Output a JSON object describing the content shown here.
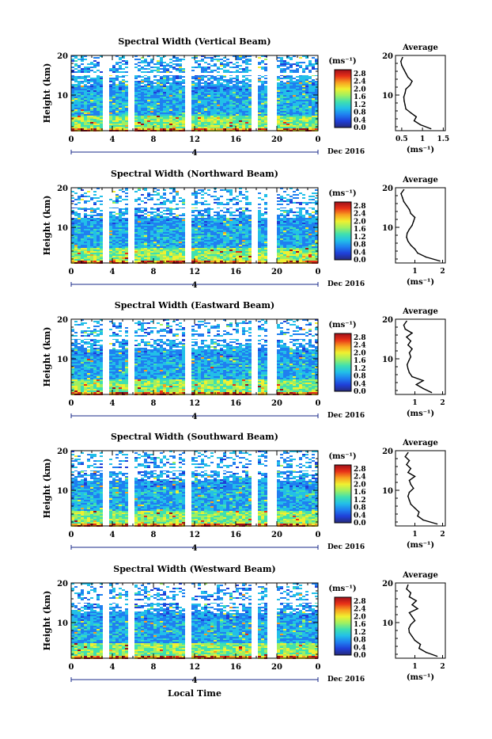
{
  "figure": {
    "y_axis_label": "Height (km)",
    "x_axis_label": "Local Time",
    "date_label": "Dec 2016",
    "unit_label": "(ms⁻¹)",
    "profile_unit_label": "(ms⁻¹)",
    "profile_title": "Average",
    "day_marker": "4"
  },
  "chart_data": [
    {
      "type": "heatmap",
      "title": "Spectral Width (Vertical Beam)",
      "xlabel": "",
      "ylabel": "Height (km)",
      "x_ticks": [
        "0",
        "4",
        "8",
        "12",
        "16",
        "20",
        "0"
      ],
      "y_ticks": [
        "20",
        "10"
      ],
      "xlim": [
        0,
        24
      ],
      "ylim": [
        1,
        20
      ],
      "colorbar": {
        "ticks": [
          "2.8",
          "2.4",
          "2.0",
          "1.6",
          "1.2",
          "0.8",
          "0.4",
          "0.0"
        ],
        "range": [
          0,
          3.0
        ]
      },
      "profile": {
        "type": "line",
        "title": "Average",
        "x_ticks": [
          "0.5",
          "1",
          "1.5"
        ],
        "xlim": [
          0.35,
          1.55
        ],
        "y_ticks": [
          "20",
          "10"
        ],
        "ylim": [
          1,
          20
        ],
        "heights": [
          1.5,
          2.5,
          3.5,
          4.5,
          5.5,
          6.5,
          7.5,
          8.5,
          9.5,
          10.5,
          11.5,
          12.5,
          13.5,
          14.5,
          15.5,
          16.5,
          17.5,
          18.5,
          19.5
        ],
        "values": [
          1.2,
          0.95,
          0.8,
          0.85,
          0.72,
          0.6,
          0.58,
          0.56,
          0.55,
          0.58,
          0.6,
          0.7,
          0.75,
          0.65,
          0.6,
          0.55,
          0.5,
          0.48,
          0.52
        ]
      }
    },
    {
      "type": "heatmap",
      "title": "Spectral Width (Northward Beam)",
      "xlabel": "",
      "ylabel": "Height (km)",
      "x_ticks": [
        "0",
        "4",
        "8",
        "12",
        "16",
        "20",
        "0"
      ],
      "y_ticks": [
        "20",
        "10"
      ],
      "xlim": [
        0,
        24
      ],
      "ylim": [
        1,
        20
      ],
      "colorbar": {
        "ticks": [
          "2.8",
          "2.4",
          "2.0",
          "1.6",
          "1.2",
          "0.8",
          "0.4",
          "0.0"
        ],
        "range": [
          0,
          3.0
        ]
      },
      "profile": {
        "type": "line",
        "title": "Average",
        "x_ticks": [
          "1",
          "2"
        ],
        "xlim": [
          0.3,
          2.1
        ],
        "y_ticks": [
          "20",
          "10"
        ],
        "ylim": [
          1,
          20
        ],
        "heights": [
          1.5,
          2.5,
          3.5,
          4.5,
          5.5,
          6.5,
          7.5,
          8.5,
          9.5,
          10.5,
          11.5,
          12.5,
          13.5,
          14.5,
          15.5,
          16.5,
          17.5,
          18.5,
          19.5
        ],
        "values": [
          1.9,
          1.4,
          1.1,
          1.0,
          0.85,
          0.75,
          0.7,
          0.72,
          0.8,
          0.9,
          0.95,
          1.0,
          0.85,
          0.8,
          0.7,
          0.6,
          0.55,
          0.5,
          0.6
        ]
      }
    },
    {
      "type": "heatmap",
      "title": "Spectral Width (Eastward Beam)",
      "xlabel": "",
      "ylabel": "Height (km)",
      "x_ticks": [
        "0",
        "4",
        "8",
        "12",
        "16",
        "20",
        "0"
      ],
      "y_ticks": [
        "20",
        "10"
      ],
      "xlim": [
        0,
        24
      ],
      "ylim": [
        1,
        20
      ],
      "colorbar": {
        "ticks": [
          "2.8",
          "2.4",
          "2.0",
          "1.6",
          "1.2",
          "0.8",
          "0.4",
          "0.0"
        ],
        "range": [
          0,
          3.0
        ]
      },
      "profile": {
        "type": "line",
        "title": "Average",
        "x_ticks": [
          "1",
          "2"
        ],
        "xlim": [
          0.3,
          2.1
        ],
        "y_ticks": [
          "20",
          "10"
        ],
        "ylim": [
          1,
          20
        ],
        "heights": [
          1.5,
          2.5,
          3.5,
          4.5,
          5.5,
          6.5,
          7.5,
          8.5,
          9.5,
          10.5,
          11.5,
          12.5,
          13.5,
          14.5,
          15.5,
          16.5,
          17.5,
          18.5,
          19.5
        ],
        "values": [
          1.6,
          1.3,
          1.05,
          1.3,
          0.9,
          0.8,
          0.75,
          0.72,
          0.78,
          0.85,
          0.8,
          0.9,
          0.75,
          0.85,
          0.7,
          0.9,
          0.65,
          0.6,
          0.7
        ]
      }
    },
    {
      "type": "heatmap",
      "title": "Spectral Width (Southward Beam)",
      "xlabel": "",
      "ylabel": "Height (km)",
      "x_ticks": [
        "0",
        "4",
        "8",
        "12",
        "16",
        "20",
        "0"
      ],
      "y_ticks": [
        "20",
        "10"
      ],
      "xlim": [
        0,
        24
      ],
      "ylim": [
        1,
        20
      ],
      "colorbar": {
        "ticks": [
          "2.8",
          "2.4",
          "2.0",
          "1.6",
          "1.2",
          "0.8",
          "0.4",
          "0.0"
        ],
        "range": [
          0,
          3.0
        ]
      },
      "profile": {
        "type": "line",
        "title": "Average",
        "x_ticks": [
          "1",
          "2"
        ],
        "xlim": [
          0.3,
          2.1
        ],
        "y_ticks": [
          "20",
          "10"
        ],
        "ylim": [
          1,
          20
        ],
        "heights": [
          1.5,
          2.5,
          3.5,
          4.5,
          5.5,
          6.5,
          7.5,
          8.5,
          9.5,
          10.5,
          11.5,
          12.5,
          13.5,
          14.5,
          15.5,
          16.5,
          17.5,
          18.5,
          19.5
        ],
        "values": [
          1.8,
          1.3,
          1.1,
          1.15,
          1.0,
          0.85,
          0.8,
          0.75,
          0.8,
          0.95,
          0.85,
          0.8,
          1.0,
          0.75,
          0.85,
          0.7,
          0.8,
          0.65,
          0.75
        ]
      }
    },
    {
      "type": "heatmap",
      "title": "Spectral Width (Westward Beam)",
      "xlabel": "Local Time",
      "ylabel": "Height (km)",
      "x_ticks": [
        "0",
        "4",
        "8",
        "12",
        "16",
        "20",
        "0"
      ],
      "y_ticks": [
        "20",
        "10"
      ],
      "xlim": [
        0,
        24
      ],
      "ylim": [
        1,
        20
      ],
      "colorbar": {
        "ticks": [
          "2.8",
          "2.4",
          "2.0",
          "1.6",
          "1.2",
          "0.8",
          "0.4",
          "0.0"
        ],
        "range": [
          0,
          3.0
        ]
      },
      "profile": {
        "type": "line",
        "title": "Average",
        "x_ticks": [
          "1",
          "2"
        ],
        "xlim": [
          0.3,
          2.1
        ],
        "y_ticks": [
          "20",
          "10"
        ],
        "ylim": [
          1,
          20
        ],
        "heights": [
          1.5,
          2.5,
          3.5,
          4.5,
          5.5,
          6.5,
          7.5,
          8.5,
          9.5,
          10.5,
          11.5,
          12.5,
          13.5,
          14.5,
          15.5,
          16.5,
          17.5,
          18.5,
          19.5
        ],
        "values": [
          1.8,
          1.4,
          1.15,
          1.2,
          1.0,
          0.9,
          0.8,
          0.78,
          0.85,
          1.0,
          0.9,
          0.8,
          1.1,
          0.9,
          1.05,
          0.8,
          0.85,
          0.7,
          0.75
        ]
      }
    }
  ],
  "colors": {
    "colormap": [
      "#262a7a",
      "#1f3fd8",
      "#1f7ff0",
      "#22bfe8",
      "#3fe0b0",
      "#a0f060",
      "#f0f030",
      "#f8a020",
      "#e83018",
      "#a0101a"
    ],
    "axis": "#000000",
    "background": "#ffffff",
    "day_marker_line": "#1a2a8a"
  }
}
